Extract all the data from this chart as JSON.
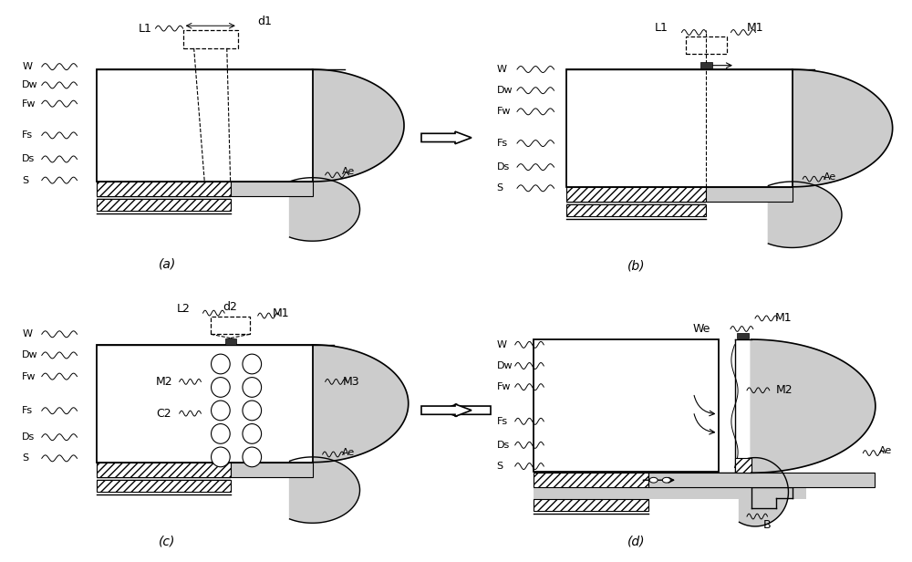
{
  "bg_color": "#ffffff",
  "line_color": "#000000",
  "dot_color": "#cccccc",
  "hatch_color": "#000000",
  "marker_color": "#333333",
  "left_labels": [
    "W",
    "Dw",
    "Fw",
    "Fs",
    "Ds",
    "S"
  ],
  "panel_labels": [
    "(a)",
    "(b)",
    "(c)",
    "(d)"
  ],
  "label_fontsize": 8,
  "panel_label_fontsize": 10,
  "annot_fontsize": 9
}
